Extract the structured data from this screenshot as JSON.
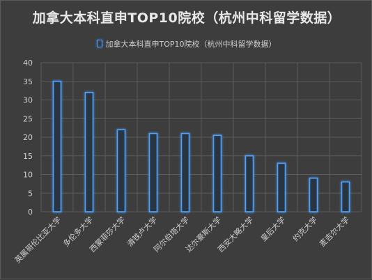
{
  "chart_data": {
    "type": "bar",
    "title": "加拿大本科直申TOP10院校（杭州中科留学数据）",
    "legend_label": "加拿大本科直申TOP10院校（杭州中科留学数据）",
    "categories": [
      "英属哥伦比亚大学",
      "多伦多大学",
      "西蒙菲莎大学",
      "滑铁卢大学",
      "阿尔伯塔大学",
      "达尔豪斯大学",
      "西安大略大学",
      "皇后大学",
      "约克大学",
      "麦吉尔大学"
    ],
    "values": [
      35,
      32,
      22,
      21,
      21,
      20.5,
      15,
      13,
      9,
      8
    ],
    "ylim": [
      0,
      40
    ],
    "yticks": [
      0,
      5,
      10,
      15,
      20,
      25,
      30,
      35,
      40
    ],
    "grid": true,
    "legend_position": "top",
    "colors": {
      "background": "#3d3d3d",
      "bar_edge": "#4da3ff",
      "bar_glow": "#1f6fd0",
      "grid": "#5c5c5c",
      "text": "#d0d0d0"
    }
  }
}
